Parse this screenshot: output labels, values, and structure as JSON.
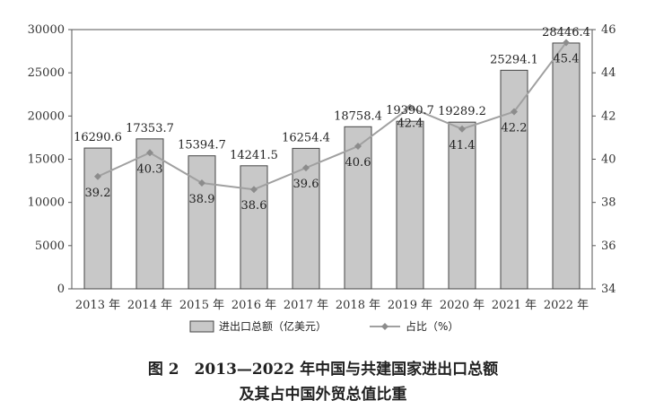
{
  "chart_data": {
    "type": "bar",
    "categories": [
      "2013 年",
      "2014 年",
      "2015 年",
      "2016 年",
      "2017 年",
      "2018 年",
      "2019 年",
      "2020 年",
      "2021 年",
      "2022 年"
    ],
    "series": [
      {
        "name": "进出口总额（亿美元）",
        "type": "bar",
        "axis": "left",
        "values": [
          16290.6,
          17353.7,
          15394.7,
          14241.5,
          16254.4,
          18758.4,
          19390.7,
          19289.2,
          25294.1,
          28446.4
        ],
        "labels": [
          "16290.6",
          "17353.7",
          "15394.7",
          "14241.5",
          "16254.4",
          "18758.4",
          "19390.7",
          "19289.2",
          "25294.1",
          "28446.4"
        ]
      },
      {
        "name": "占比（%）",
        "type": "line",
        "axis": "right",
        "values": [
          39.2,
          40.3,
          38.9,
          38.6,
          39.6,
          40.6,
          42.4,
          41.4,
          42.2,
          45.4
        ],
        "labels": [
          "39.2",
          "40.3",
          "38.9",
          "38.6",
          "39.6",
          "40.6",
          "42.4",
          "41.4",
          "42.2",
          "45.4"
        ]
      }
    ],
    "y_left": {
      "min": 0,
      "max": 30000,
      "ticks": [
        "0",
        "5000",
        "10000",
        "15000",
        "20000",
        "25000",
        "30000"
      ]
    },
    "y_right": {
      "min": 34,
      "max": 46,
      "ticks": [
        "34",
        "36",
        "38",
        "40",
        "42",
        "44",
        "46"
      ]
    },
    "legend_position": "bottom",
    "grid": false,
    "colors": {
      "bar_fill": "#c8c8c8",
      "bar_stroke": "#444444",
      "line": "#a0a0a0",
      "marker": "#8c8c8c"
    }
  },
  "caption": {
    "line1": "图 2　2013—2022 年中国与共建国家进出口总额",
    "line2": "及其占中国外贸总值比重"
  }
}
